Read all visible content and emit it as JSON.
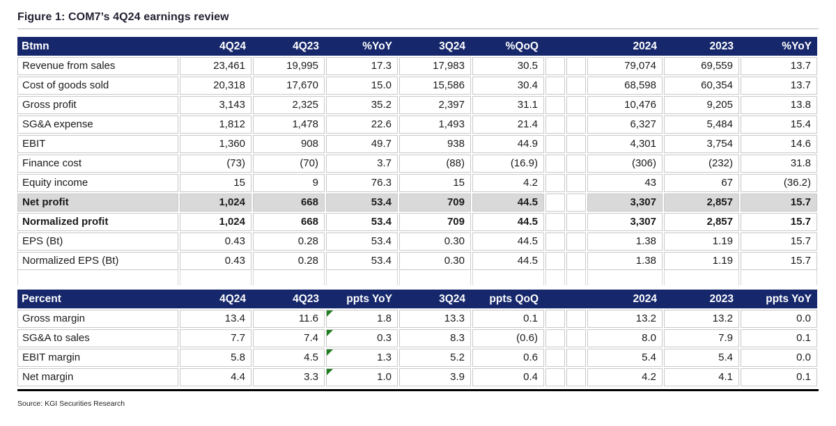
{
  "figure": {
    "title": "Figure 1: COM7’s 4Q24 earnings review",
    "source": "Source: KGI Securities Research"
  },
  "colors": {
    "header_bg": "#16276b",
    "header_text": "#ffffff",
    "highlight_row_bg": "#d9d9d9",
    "grid_border": "#c8c8c8",
    "positive_flag_green": "#1e7e1e"
  },
  "icons": {
    "positive_change_triangle": "top-left green corner triangle"
  },
  "income_table": {
    "columns": [
      "Btmn",
      "4Q24",
      "4Q23",
      "%YoY",
      "3Q24",
      "%QoQ",
      "",
      "",
      "2024",
      "2023",
      "%YoY"
    ],
    "rows": [
      {
        "label": "Revenue from sales",
        "values": [
          "23,461",
          "19,995",
          "17.3",
          "17,983",
          "30.5",
          "79,074",
          "69,559",
          "13.7"
        ],
        "bold": false,
        "highlight": false,
        "flag": false
      },
      {
        "label": "Cost of goods sold",
        "values": [
          "20,318",
          "17,670",
          "15.0",
          "15,586",
          "30.4",
          "68,598",
          "60,354",
          "13.7"
        ],
        "bold": false,
        "highlight": false,
        "flag": false
      },
      {
        "label": "Gross profit",
        "values": [
          "3,143",
          "2,325",
          "35.2",
          "2,397",
          "31.1",
          "10,476",
          "9,205",
          "13.8"
        ],
        "bold": false,
        "highlight": false,
        "flag": false
      },
      {
        "label": "SG&A expense",
        "values": [
          "1,812",
          "1,478",
          "22.6",
          "1,493",
          "21.4",
          "6,327",
          "5,484",
          "15.4"
        ],
        "bold": false,
        "highlight": false,
        "flag": false
      },
      {
        "label": "EBIT",
        "values": [
          "1,360",
          "908",
          "49.7",
          "938",
          "44.9",
          "4,301",
          "3,754",
          "14.6"
        ],
        "bold": false,
        "highlight": false,
        "flag": false
      },
      {
        "label": "Finance cost",
        "values": [
          "(73)",
          "(70)",
          "3.7",
          "(88)",
          "(16.9)",
          "(306)",
          "(232)",
          "31.8"
        ],
        "bold": false,
        "highlight": false,
        "flag": false
      },
      {
        "label": "Equity income",
        "values": [
          "15",
          "9",
          "76.3",
          "15",
          "4.2",
          "43",
          "67",
          "(36.2)"
        ],
        "bold": false,
        "highlight": false,
        "flag": false
      },
      {
        "label": "Net profit",
        "values": [
          "1,024",
          "668",
          "53.4",
          "709",
          "44.5",
          "3,307",
          "2,857",
          "15.7"
        ],
        "bold": true,
        "highlight": true,
        "flag": false
      },
      {
        "label": "Normalized profit",
        "values": [
          "1,024",
          "668",
          "53.4",
          "709",
          "44.5",
          "3,307",
          "2,857",
          "15.7"
        ],
        "bold": true,
        "highlight": false,
        "flag": false
      },
      {
        "label": "EPS (Bt)",
        "values": [
          "0.43",
          "0.28",
          "53.4",
          "0.30",
          "44.5",
          "1.38",
          "1.19",
          "15.7"
        ],
        "bold": false,
        "highlight": false,
        "flag": false
      },
      {
        "label": "Normalized EPS (Bt)",
        "values": [
          "0.43",
          "0.28",
          "53.4",
          "0.30",
          "44.5",
          "1.38",
          "1.19",
          "15.7"
        ],
        "bold": false,
        "highlight": false,
        "flag": false
      }
    ]
  },
  "percent_table": {
    "columns": [
      "Percent",
      "4Q24",
      "4Q23",
      "ppts YoY",
      "3Q24",
      "ppts QoQ",
      "",
      "",
      "2024",
      "2023",
      "ppts YoY"
    ],
    "rows": [
      {
        "label": "Gross margin",
        "values": [
          "13.4",
          "11.6",
          "1.8",
          "13.3",
          "0.1",
          "13.2",
          "13.2",
          "0.0"
        ],
        "bold": false,
        "highlight": false,
        "flag": true
      },
      {
        "label": "SG&A to sales",
        "values": [
          "7.7",
          "7.4",
          "0.3",
          "8.3",
          "(0.6)",
          "8.0",
          "7.9",
          "0.1"
        ],
        "bold": false,
        "highlight": false,
        "flag": true
      },
      {
        "label": "EBIT margin",
        "values": [
          "5.8",
          "4.5",
          "1.3",
          "5.2",
          "0.6",
          "5.4",
          "5.4",
          "0.0"
        ],
        "bold": false,
        "highlight": false,
        "flag": true
      },
      {
        "label": "Net margin",
        "values": [
          "4.4",
          "3.3",
          "1.0",
          "3.9",
          "0.4",
          "4.2",
          "4.1",
          "0.1"
        ],
        "bold": false,
        "highlight": false,
        "flag": true
      }
    ]
  }
}
